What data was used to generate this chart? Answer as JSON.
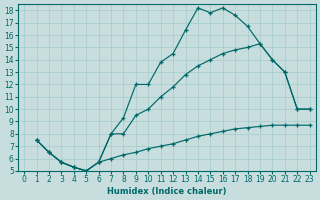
{
  "xlabel": "Humidex (Indice chaleur)",
  "background_color": "#c8dede",
  "grid_color": "#aacece",
  "line_color": "#006868",
  "xlim": [
    -0.5,
    23.5
  ],
  "ylim": [
    5,
    18.5
  ],
  "xticks": [
    0,
    1,
    2,
    3,
    4,
    5,
    6,
    7,
    8,
    9,
    10,
    11,
    12,
    13,
    14,
    15,
    16,
    17,
    18,
    19,
    20,
    21,
    22,
    23
  ],
  "yticks": [
    5,
    6,
    7,
    8,
    9,
    10,
    11,
    12,
    13,
    14,
    15,
    16,
    17,
    18
  ],
  "series": [
    {
      "x": [
        1,
        2,
        3,
        4,
        5,
        6,
        7,
        8,
        9,
        10,
        11,
        12,
        13,
        14,
        15,
        16,
        17,
        18,
        19,
        20,
        21,
        22,
        23
      ],
      "y": [
        7.5,
        6.5,
        5.7,
        5.3,
        5.0,
        5.7,
        8.0,
        9.3,
        12.0,
        12.0,
        13.8,
        14.5,
        16.4,
        18.2,
        17.8,
        18.2,
        17.6,
        16.7,
        15.3,
        14.0,
        13.0,
        10.0,
        10.0
      ]
    },
    {
      "x": [
        1,
        2,
        3,
        4,
        5,
        6,
        7,
        8,
        9,
        10,
        11,
        12,
        13,
        14,
        15,
        16,
        17,
        18,
        19,
        20,
        21,
        22,
        23
      ],
      "y": [
        7.5,
        6.5,
        5.7,
        5.3,
        5.0,
        5.7,
        6.0,
        6.3,
        6.5,
        6.8,
        7.0,
        7.2,
        7.5,
        7.8,
        8.0,
        8.2,
        8.4,
        8.5,
        8.6,
        8.7,
        8.7,
        8.7,
        8.7
      ]
    },
    {
      "x": [
        1,
        2,
        3,
        4,
        5,
        6,
        7,
        8,
        9,
        10,
        11,
        12,
        13,
        14,
        15,
        16,
        17,
        18,
        19,
        20,
        21,
        22,
        23
      ],
      "y": [
        7.5,
        6.5,
        5.7,
        5.3,
        5.0,
        5.7,
        8.0,
        8.0,
        9.5,
        10.0,
        11.0,
        11.8,
        12.8,
        13.5,
        14.0,
        14.5,
        14.8,
        15.0,
        15.3,
        14.0,
        13.0,
        10.0,
        10.0
      ]
    }
  ]
}
